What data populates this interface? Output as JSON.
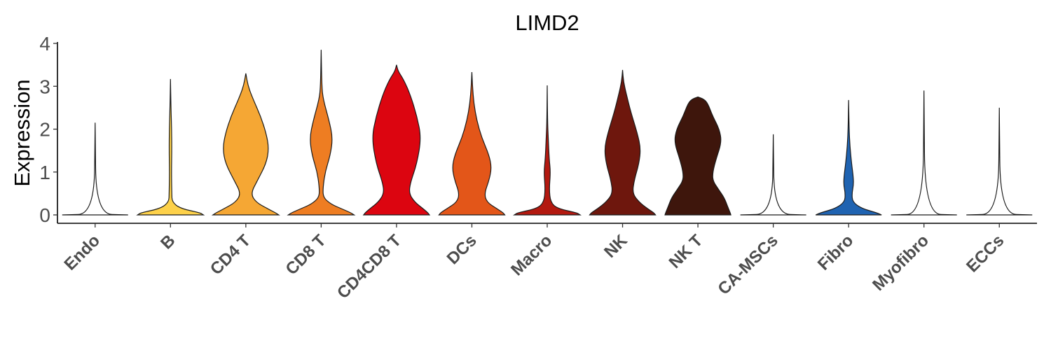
{
  "chart_data": {
    "type": "violin",
    "title": "LIMD2",
    "xlabel": "",
    "ylabel": "Expression",
    "ylim": [
      -0.18,
      4.05
    ],
    "yticks": [
      "0",
      "1",
      "2",
      "3",
      "4"
    ],
    "legend": "none",
    "grid": false,
    "categories": [
      "Endo",
      "B",
      "CD4 T",
      "CD8 T",
      "CD4CD8 T",
      "DCs",
      "Macro",
      "NK",
      "NK T",
      "CA-MSCs",
      "Fibro",
      "Myofibro",
      "ECCs"
    ],
    "colors": [
      "#ffffff",
      "#FDD14A",
      "#F5A734",
      "#EE7D22",
      "#DC0510",
      "#E35619",
      "#B31910",
      "#6E170D",
      "#3E160C",
      "#ffffff",
      "#1F63B1",
      "#ffffff",
      "#ffffff"
    ],
    "series": [
      {
        "category": "Endo",
        "max": 2.15,
        "profile": [
          [
            0,
            1
          ],
          [
            0.02,
            0.03
          ],
          [
            2.15,
            0
          ]
        ]
      },
      {
        "category": "B",
        "max": 3.17,
        "profile": [
          [
            0,
            1
          ],
          [
            0.05,
            0.9
          ],
          [
            0.15,
            0.3
          ],
          [
            0.3,
            0.05
          ],
          [
            0.5,
            0.04
          ],
          [
            1.0,
            0.03
          ],
          [
            1.5,
            0.04
          ],
          [
            2.0,
            0.035
          ],
          [
            2.5,
            0.015
          ],
          [
            3.17,
            0
          ]
        ]
      },
      {
        "category": "CD4 T",
        "max": 3.3,
        "profile": [
          [
            0,
            1
          ],
          [
            0.05,
            0.9
          ],
          [
            0.15,
            0.65
          ],
          [
            0.3,
            0.3
          ],
          [
            0.5,
            0.15
          ],
          [
            0.8,
            0.35
          ],
          [
            1.2,
            0.62
          ],
          [
            1.55,
            0.7
          ],
          [
            1.9,
            0.62
          ],
          [
            2.3,
            0.45
          ],
          [
            2.7,
            0.22
          ],
          [
            3.0,
            0.07
          ],
          [
            3.3,
            0
          ]
        ]
      },
      {
        "category": "CD8 T",
        "max": 3.85,
        "profile": [
          [
            0,
            1
          ],
          [
            0.05,
            0.9
          ],
          [
            0.15,
            0.6
          ],
          [
            0.25,
            0.3
          ],
          [
            0.4,
            0.07
          ],
          [
            0.6,
            0.05
          ],
          [
            1.0,
            0.12
          ],
          [
            1.4,
            0.28
          ],
          [
            1.8,
            0.35
          ],
          [
            2.2,
            0.24
          ],
          [
            2.7,
            0.06
          ],
          [
            3.0,
            0.02
          ],
          [
            3.85,
            0
          ]
        ]
      },
      {
        "category": "CD4CD8 T",
        "max": 3.5,
        "profile": [
          [
            0,
            1
          ],
          [
            0.05,
            0.95
          ],
          [
            0.15,
            0.8
          ],
          [
            0.3,
            0.55
          ],
          [
            0.5,
            0.38
          ],
          [
            0.75,
            0.42
          ],
          [
            1.2,
            0.62
          ],
          [
            1.8,
            0.75
          ],
          [
            2.3,
            0.62
          ],
          [
            2.8,
            0.42
          ],
          [
            3.15,
            0.22
          ],
          [
            3.35,
            0.05
          ],
          [
            3.5,
            0
          ]
        ]
      },
      {
        "category": "DCs",
        "max": 3.33,
        "profile": [
          [
            0,
            1
          ],
          [
            0.05,
            0.95
          ],
          [
            0.15,
            0.75
          ],
          [
            0.3,
            0.45
          ],
          [
            0.5,
            0.38
          ],
          [
            0.8,
            0.52
          ],
          [
            1.1,
            0.6
          ],
          [
            1.4,
            0.52
          ],
          [
            1.8,
            0.3
          ],
          [
            2.2,
            0.15
          ],
          [
            2.6,
            0.06
          ],
          [
            3.0,
            0.02
          ],
          [
            3.33,
            0
          ]
        ]
      },
      {
        "category": "Macro",
        "max": 3.02,
        "profile": [
          [
            0,
            1
          ],
          [
            0.05,
            0.9
          ],
          [
            0.15,
            0.3
          ],
          [
            0.3,
            0.1
          ],
          [
            0.6,
            0.06
          ],
          [
            1.0,
            0.1
          ],
          [
            1.3,
            0.06
          ],
          [
            1.8,
            0.03
          ],
          [
            2.2,
            0.01
          ],
          [
            3.02,
            0
          ]
        ]
      },
      {
        "category": "NK",
        "max": 3.38,
        "profile": [
          [
            0,
            1
          ],
          [
            0.05,
            0.95
          ],
          [
            0.15,
            0.75
          ],
          [
            0.3,
            0.5
          ],
          [
            0.5,
            0.3
          ],
          [
            0.8,
            0.35
          ],
          [
            1.2,
            0.5
          ],
          [
            1.55,
            0.55
          ],
          [
            1.9,
            0.45
          ],
          [
            2.4,
            0.25
          ],
          [
            2.8,
            0.12
          ],
          [
            3.1,
            0.03
          ],
          [
            3.38,
            0
          ]
        ]
      },
      {
        "category": "NK T",
        "max": 2.75,
        "profile": [
          [
            0,
            1
          ],
          [
            0.05,
            0.98
          ],
          [
            0.2,
            0.9
          ],
          [
            0.4,
            0.8
          ],
          [
            0.6,
            0.62
          ],
          [
            0.8,
            0.45
          ],
          [
            1.0,
            0.45
          ],
          [
            1.3,
            0.55
          ],
          [
            1.7,
            0.72
          ],
          [
            2.0,
            0.65
          ],
          [
            2.3,
            0.45
          ],
          [
            2.6,
            0.3
          ],
          [
            2.7,
            0.18
          ],
          [
            2.75,
            0
          ]
        ]
      },
      {
        "category": "CA-MSCs",
        "max": 1.88,
        "profile": [
          [
            0,
            1
          ],
          [
            0.02,
            0.03
          ],
          [
            1.88,
            0
          ]
        ]
      },
      {
        "category": "Fibro",
        "max": 2.68,
        "profile": [
          [
            0,
            1
          ],
          [
            0.05,
            0.85
          ],
          [
            0.15,
            0.4
          ],
          [
            0.3,
            0.12
          ],
          [
            0.5,
            0.1
          ],
          [
            0.7,
            0.15
          ],
          [
            0.9,
            0.14
          ],
          [
            1.2,
            0.09
          ],
          [
            1.6,
            0.04
          ],
          [
            2.0,
            0.015
          ],
          [
            2.68,
            0
          ]
        ]
      },
      {
        "category": "Myofibro",
        "max": 2.9,
        "profile": [
          [
            0,
            1
          ],
          [
            0.02,
            0.03
          ],
          [
            2.9,
            0
          ]
        ]
      },
      {
        "category": "ECCs",
        "max": 2.5,
        "profile": [
          [
            0,
            1
          ],
          [
            0.02,
            0.03
          ],
          [
            2.5,
            0
          ]
        ]
      }
    ]
  }
}
